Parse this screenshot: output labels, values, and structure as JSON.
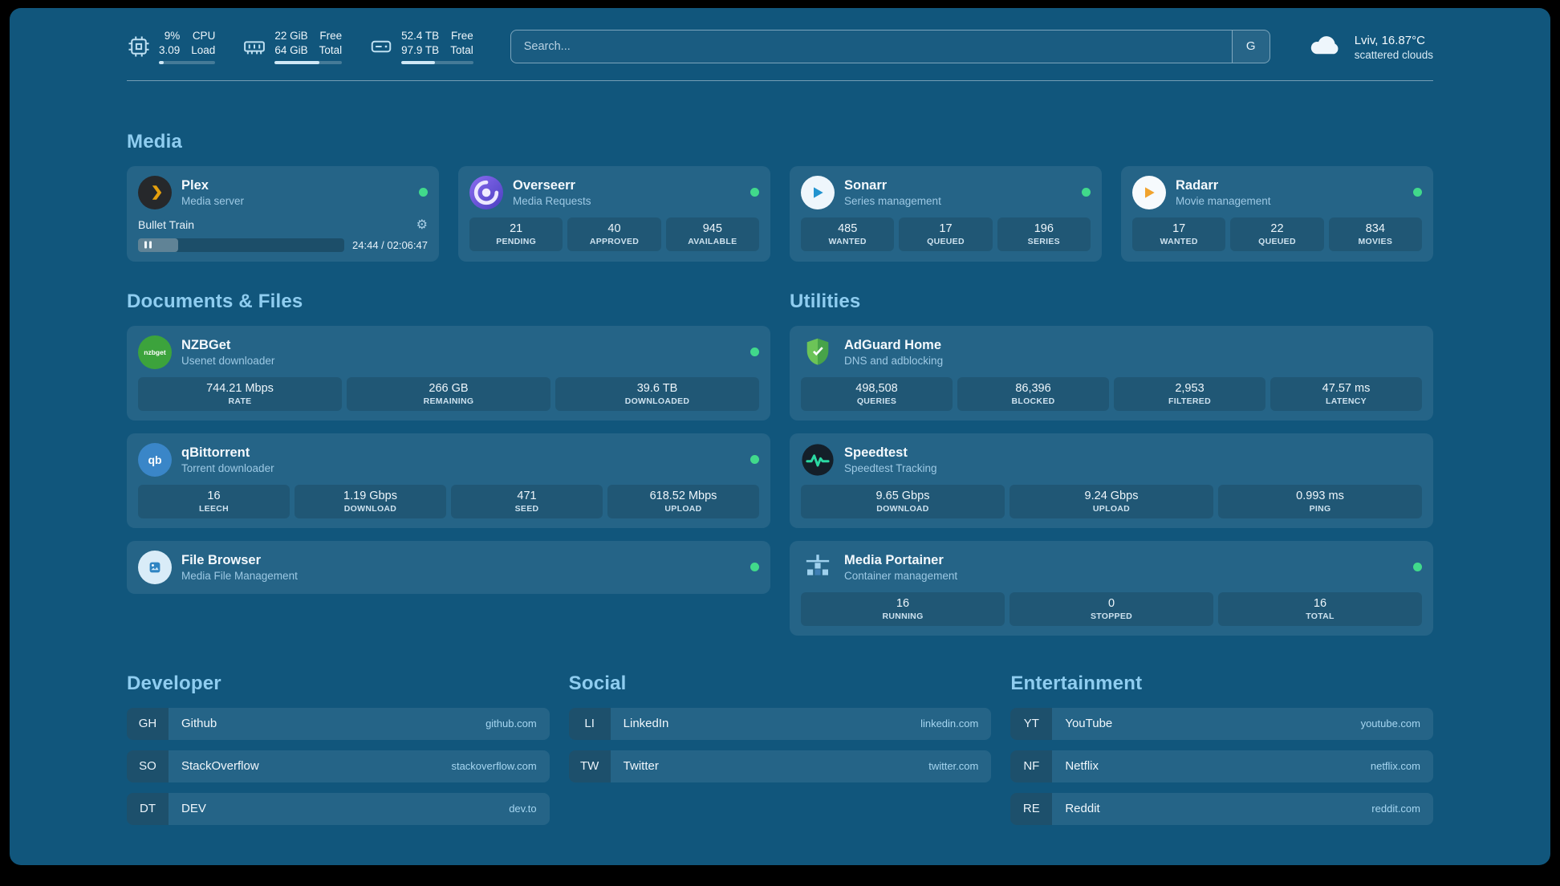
{
  "colors": {
    "background": "#11567c",
    "section_heading": "#8fcdf0",
    "status_online": "#41d98b",
    "plex_accent": "#e5a00d",
    "adguard_green": "#5cb654",
    "speedtest_green": "#2bd9a3"
  },
  "header": {
    "resources": [
      {
        "icon": "cpu-icon",
        "values": [
          "9%",
          "3.09"
        ],
        "labels": [
          "CPU",
          "Load"
        ],
        "bar_pct": 9
      },
      {
        "icon": "ram-icon",
        "values": [
          "22 GiB",
          "64 GiB"
        ],
        "labels": [
          "Free",
          "Total"
        ],
        "bar_pct": 66
      },
      {
        "icon": "disk-icon",
        "values": [
          "52.4 TB",
          "97.9 TB"
        ],
        "labels": [
          "Free",
          "Total"
        ],
        "bar_pct": 47
      }
    ],
    "search": {
      "placeholder": "Search...",
      "provider_label": "G"
    },
    "weather": {
      "location_temp": "Lviv, 16.87°C",
      "condition": "scattered clouds"
    }
  },
  "media": {
    "heading": "Media",
    "cards": [
      {
        "title": "Plex",
        "subtitle": "Media server",
        "online": true,
        "now_playing": {
          "title": "Bullet Train",
          "time": "24:44 / 02:06:47",
          "progress_pct": 19.5
        }
      },
      {
        "title": "Overseerr",
        "subtitle": "Media Requests",
        "online": true,
        "stats": [
          {
            "value": "21",
            "label": "PENDING"
          },
          {
            "value": "40",
            "label": "APPROVED"
          },
          {
            "value": "945",
            "label": "AVAILABLE"
          }
        ]
      },
      {
        "title": "Sonarr",
        "subtitle": "Series management",
        "online": true,
        "stats": [
          {
            "value": "485",
            "label": "WANTED"
          },
          {
            "value": "17",
            "label": "QUEUED"
          },
          {
            "value": "196",
            "label": "SERIES"
          }
        ]
      },
      {
        "title": "Radarr",
        "subtitle": "Movie management",
        "online": true,
        "stats": [
          {
            "value": "17",
            "label": "WANTED"
          },
          {
            "value": "22",
            "label": "QUEUED"
          },
          {
            "value": "834",
            "label": "MOVIES"
          }
        ]
      }
    ]
  },
  "documents": {
    "heading": "Documents & Files",
    "cards": [
      {
        "title": "NZBGet",
        "subtitle": "Usenet downloader",
        "online": true,
        "stats": [
          {
            "value": "744.21 Mbps",
            "label": "RATE"
          },
          {
            "value": "266 GB",
            "label": "REMAINING"
          },
          {
            "value": "39.6 TB",
            "label": "DOWNLOADED"
          }
        ]
      },
      {
        "title": "qBittorrent",
        "subtitle": "Torrent downloader",
        "online": true,
        "stats": [
          {
            "value": "16",
            "label": "LEECH"
          },
          {
            "value": "1.19 Gbps",
            "label": "DOWNLOAD"
          },
          {
            "value": "471",
            "label": "SEED"
          },
          {
            "value": "618.52 Mbps",
            "label": "UPLOAD"
          }
        ]
      },
      {
        "title": "File Browser",
        "subtitle": "Media File Management",
        "online": true
      }
    ]
  },
  "utilities": {
    "heading": "Utilities",
    "cards": [
      {
        "title": "AdGuard Home",
        "subtitle": "DNS and adblocking",
        "online": false,
        "stats": [
          {
            "value": "498,508",
            "label": "QUERIES"
          },
          {
            "value": "86,396",
            "label": "BLOCKED"
          },
          {
            "value": "2,953",
            "label": "FILTERED"
          },
          {
            "value": "47.57 ms",
            "label": "LATENCY"
          }
        ]
      },
      {
        "title": "Speedtest",
        "subtitle": "Speedtest Tracking",
        "online": false,
        "stats": [
          {
            "value": "9.65 Gbps",
            "label": "DOWNLOAD"
          },
          {
            "value": "9.24 Gbps",
            "label": "UPLOAD"
          },
          {
            "value": "0.993 ms",
            "label": "PING"
          }
        ]
      },
      {
        "title": "Media Portainer",
        "subtitle": "Container management",
        "online": true,
        "stats": [
          {
            "value": "16",
            "label": "RUNNING"
          },
          {
            "value": "0",
            "label": "STOPPED"
          },
          {
            "value": "16",
            "label": "TOTAL"
          }
        ]
      }
    ]
  },
  "bookmarks": {
    "groups": [
      {
        "heading": "Developer",
        "items": [
          {
            "abbr": "GH",
            "name": "Github",
            "url": "github.com"
          },
          {
            "abbr": "SO",
            "name": "StackOverflow",
            "url": "stackoverflow.com"
          },
          {
            "abbr": "DT",
            "name": "DEV",
            "url": "dev.to"
          }
        ]
      },
      {
        "heading": "Social",
        "items": [
          {
            "abbr": "LI",
            "name": "LinkedIn",
            "url": "linkedin.com"
          },
          {
            "abbr": "TW",
            "name": "Twitter",
            "url": "twitter.com"
          }
        ]
      },
      {
        "heading": "Entertainment",
        "items": [
          {
            "abbr": "YT",
            "name": "YouTube",
            "url": "youtube.com"
          },
          {
            "abbr": "NF",
            "name": "Netflix",
            "url": "netflix.com"
          },
          {
            "abbr": "RE",
            "name": "Reddit",
            "url": "reddit.com"
          }
        ]
      }
    ]
  },
  "icons": {
    "nzbget_label": "nzbget",
    "qb_label": "qb",
    "gear_glyph": "⚙"
  }
}
